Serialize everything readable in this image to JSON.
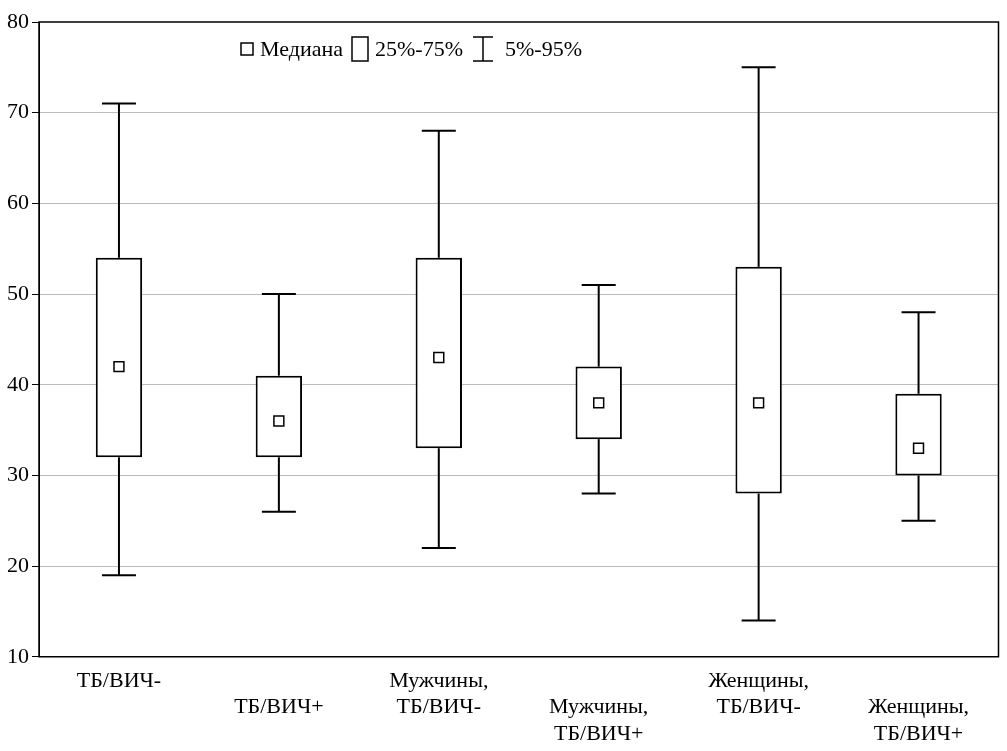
{
  "chart_data": {
    "type": "box",
    "categories": [
      "ТБ/ВИЧ-",
      "ТБ/ВИЧ+",
      "Мужчины, ТБ/ВИЧ-",
      "Мужчины, ТБ/ВИЧ+",
      "Женщины, ТБ/ВИЧ-",
      "Женщины, ТБ/ВИЧ+"
    ],
    "boxes": [
      {
        "low": 19,
        "q1": 32,
        "median": 42,
        "q3": 54,
        "high": 71
      },
      {
        "low": 26,
        "q1": 32,
        "median": 36,
        "q3": 41,
        "high": 50
      },
      {
        "low": 22,
        "q1": 33,
        "median": 43,
        "q3": 54,
        "high": 68
      },
      {
        "low": 28,
        "q1": 34,
        "median": 38,
        "q3": 42,
        "high": 51
      },
      {
        "low": 14,
        "q1": 28,
        "median": 38,
        "q3": 53,
        "high": 75
      },
      {
        "low": 25,
        "q1": 30,
        "median": 33,
        "q3": 39,
        "high": 48
      }
    ],
    "ylim": [
      10,
      80
    ],
    "yticks": [
      10,
      20,
      30,
      40,
      50,
      60,
      70,
      80
    ],
    "grid": "y",
    "annotations": [
      "Медиана",
      "25%-75%",
      "5%-95%"
    ]
  }
}
